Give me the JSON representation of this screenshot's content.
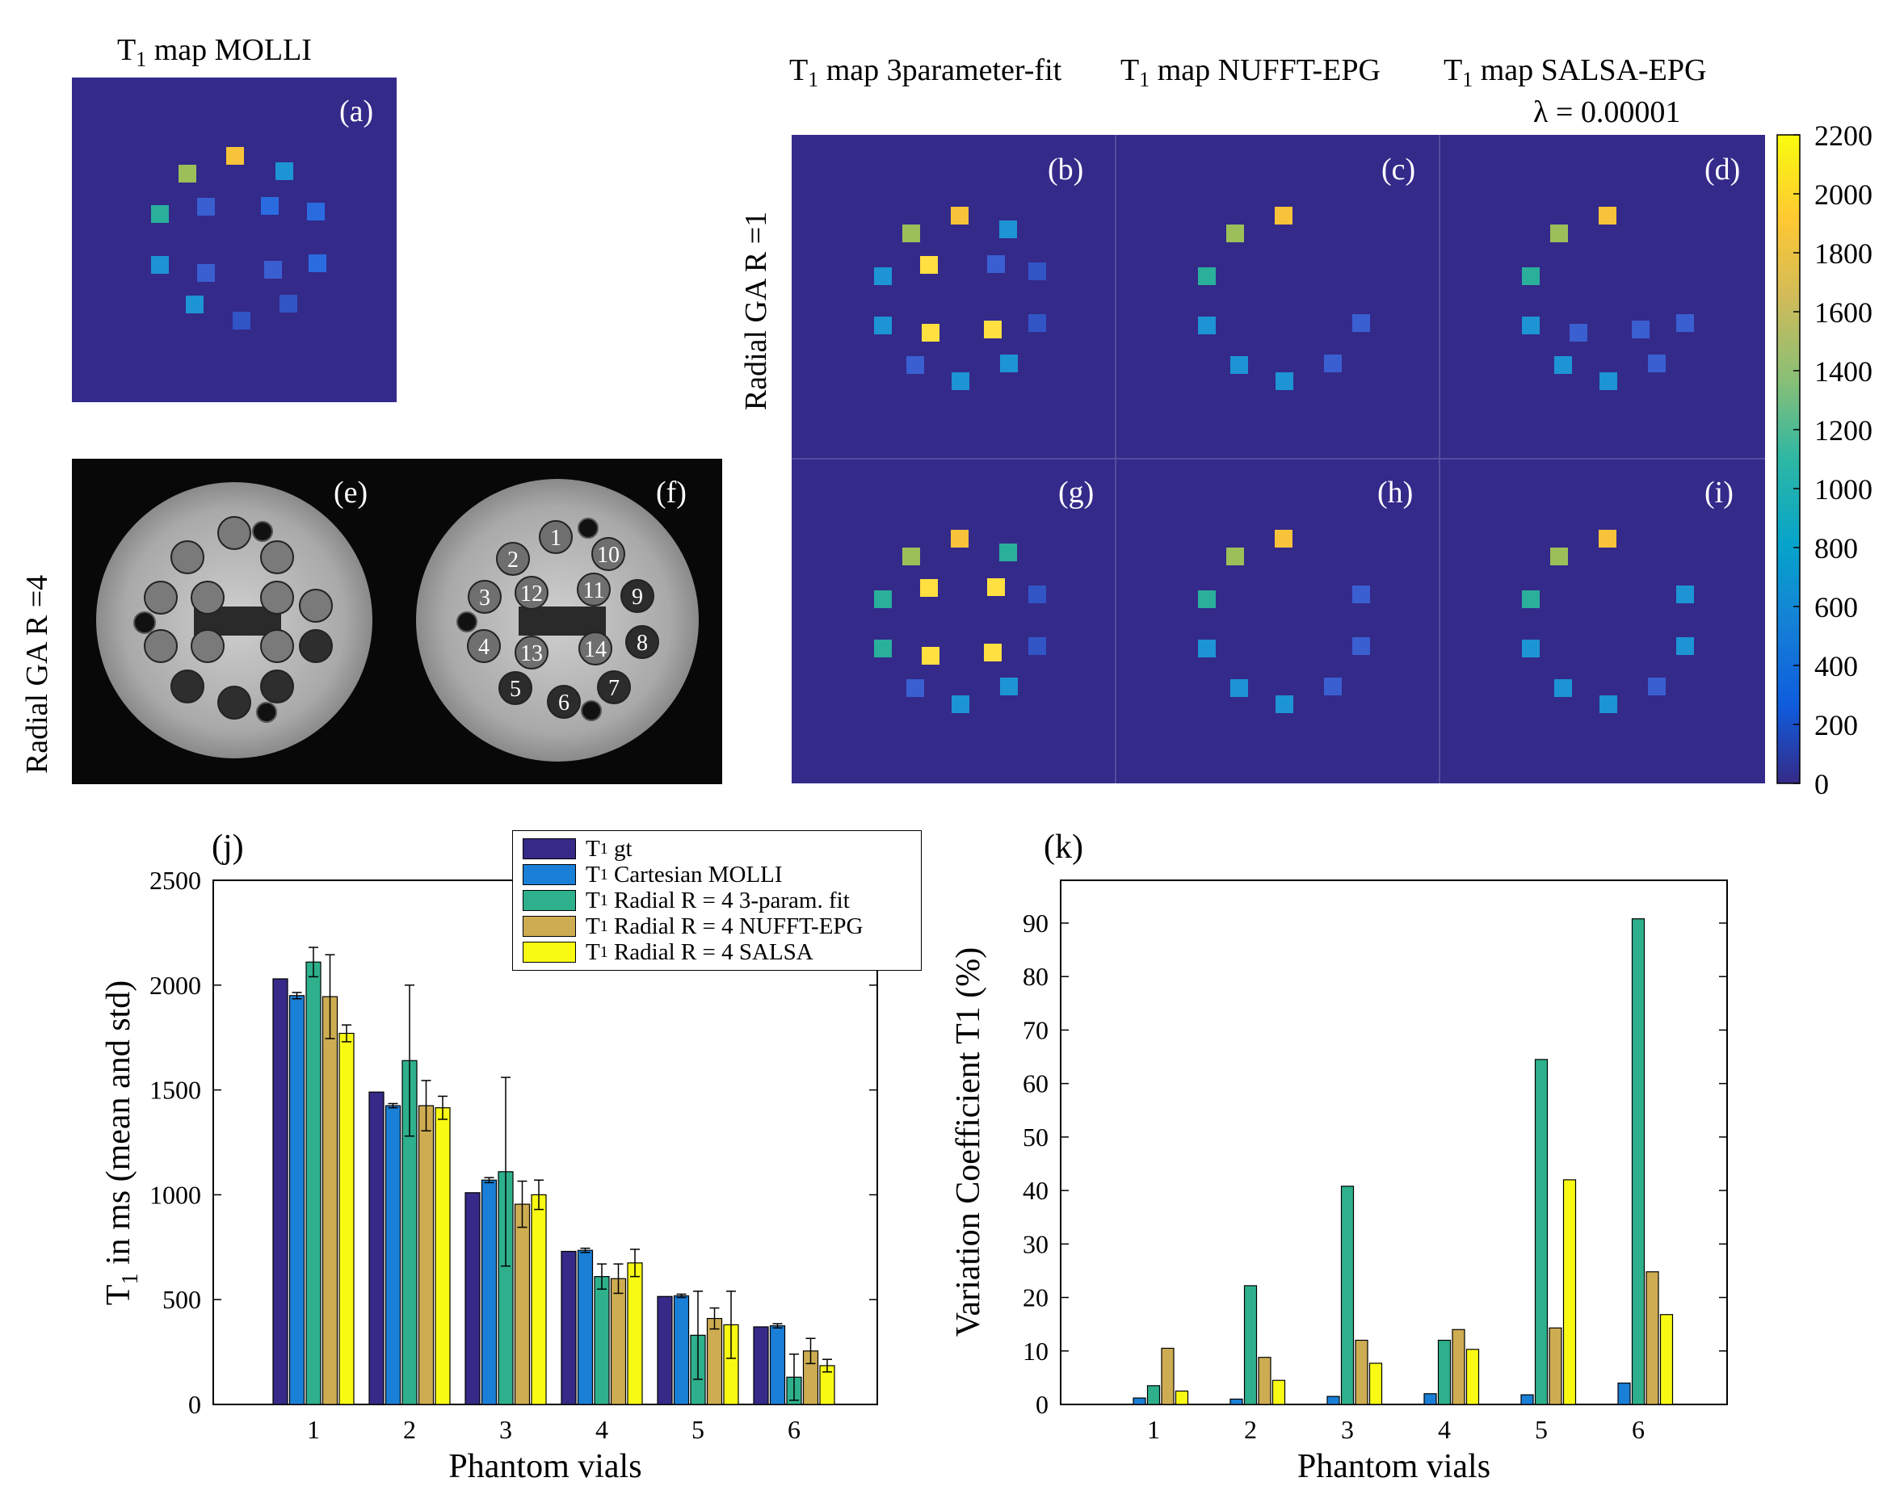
{
  "panels": {
    "a": {
      "title_prefix": "T",
      "title_sub": "1",
      "title_suffix": " map MOLLI",
      "label": "(a)"
    },
    "top_titles": [
      {
        "prefix": "T",
        "sub": "1",
        "suffix": " map 3parameter-fit"
      },
      {
        "prefix": "T",
        "sub": "1",
        "suffix": " map NUFFT-EPG"
      },
      {
        "prefix": "T",
        "sub": "1",
        "suffix": " map SALSA-EPG"
      }
    ],
    "lambda_label": "λ = 0.00001",
    "row1_label": "Radial GA R =1",
    "row2_label": "Radial GA R =4",
    "grid_labels": [
      "(b)",
      "(c)",
      "(d)",
      "(g)",
      "(h)",
      "(i)"
    ],
    "e_label": "(e)",
    "f_label": "(f)",
    "vial_numbers": [
      "1",
      "2",
      "3",
      "4",
      "5",
      "6",
      "7",
      "8",
      "9",
      "10",
      "11",
      "12",
      "13",
      "14"
    ]
  },
  "colorbar": {
    "ticks": [
      "2200",
      "2000",
      "1800",
      "1600",
      "1400",
      "1200",
      "1000",
      "800",
      "600",
      "400",
      "200",
      "0"
    ],
    "min": 0,
    "max": 2200
  },
  "colors": {
    "background_map": "#342a8a",
    "series": [
      "#352a87",
      "#1a7fd6",
      "#2eb08c",
      "#cdac52",
      "#f9fa14"
    ],
    "vials": [
      "#f7c33a",
      "#9cbf5a",
      "#2aaf9b",
      "#1d94d4",
      "#3a5fd0",
      "#2a6ce0",
      "#3155c5",
      "#ffe040"
    ]
  },
  "chart_data": [
    {
      "type": "bar",
      "panel_label": "(j)",
      "categories": [
        "1",
        "2",
        "3",
        "4",
        "5",
        "6"
      ],
      "series": [
        {
          "name_prefix": "T",
          "name_sub": "1",
          "name_suffix": " gt",
          "values": [
            2030,
            1490,
            1010,
            730,
            515,
            370
          ],
          "std": [
            0,
            0,
            0,
            0,
            0,
            0
          ]
        },
        {
          "name_prefix": "T",
          "name_sub": "1",
          "name_suffix": " Cartesian MOLLI",
          "values": [
            1950,
            1425,
            1070,
            735,
            518,
            375
          ],
          "std": [
            15,
            10,
            12,
            10,
            8,
            10
          ]
        },
        {
          "name_prefix": "T",
          "name_sub": "1",
          "name_suffix": " Radial R = 4 3-param. fit",
          "values": [
            2110,
            1640,
            1110,
            610,
            330,
            130
          ],
          "std": [
            70,
            360,
            450,
            60,
            210,
            110
          ]
        },
        {
          "name_prefix": "T",
          "name_sub": "1",
          "name_suffix": " Radial R = 4 NUFFT-EPG",
          "values": [
            1945,
            1425,
            955,
            600,
            410,
            255
          ],
          "std": [
            200,
            120,
            110,
            70,
            50,
            60
          ]
        },
        {
          "name_prefix": "T",
          "name_sub": "1",
          "name_suffix": " Radial R = 4 SALSA",
          "values": [
            1770,
            1415,
            1000,
            675,
            380,
            185
          ],
          "std": [
            40,
            55,
            70,
            65,
            160,
            30
          ]
        }
      ],
      "ylim": [
        0,
        2500
      ],
      "yticks": [
        0,
        500,
        1000,
        1500,
        2000,
        2500
      ],
      "xlabel": "Phantom vials",
      "ylabel_prefix": "T",
      "ylabel_sub": "1",
      "ylabel_suffix": " in ms (mean and std)"
    },
    {
      "type": "bar",
      "panel_label": "(k)",
      "categories": [
        "1",
        "2",
        "3",
        "4",
        "5",
        "6"
      ],
      "series": [
        {
          "name": "T1 gt",
          "values": [
            0,
            0,
            0,
            0,
            0,
            0
          ]
        },
        {
          "name": "T1 Cartesian MOLLI",
          "values": [
            1.2,
            1.0,
            1.5,
            2.0,
            1.8,
            4.0
          ]
        },
        {
          "name": "T1 Radial R = 4 3-param. fit",
          "values": [
            3.5,
            22.2,
            40.8,
            12.0,
            64.5,
            90.8
          ]
        },
        {
          "name": "T1 Radial R = 4 NUFFT-EPG",
          "values": [
            10.5,
            8.8,
            12.0,
            14.0,
            14.3,
            24.8
          ]
        },
        {
          "name": "T1 Radial R = 4 SALSA",
          "values": [
            2.5,
            4.5,
            7.7,
            10.3,
            42.0,
            16.8
          ]
        }
      ],
      "ylim": [
        0,
        98
      ],
      "yticks": [
        0,
        10,
        20,
        30,
        40,
        50,
        60,
        70,
        80,
        90
      ],
      "xlabel": "Phantom vials",
      "ylabel": "Variation Coefficient T1 (%)"
    }
  ]
}
